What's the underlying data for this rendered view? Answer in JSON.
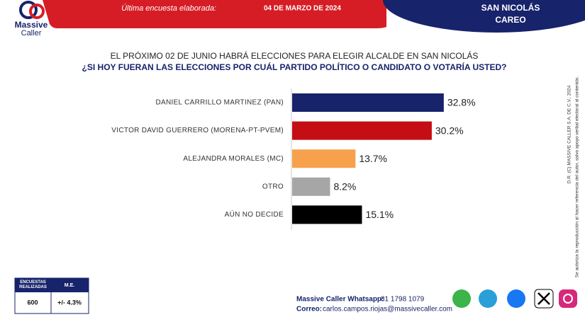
{
  "header": {
    "logo_line1": "Massive",
    "logo_line2": "Caller",
    "survey_label": "Última encuesta elaborada:",
    "survey_date": "04 DE MARZO DE 2024",
    "region": "SAN NICOLÁS",
    "region_sub": "CAREO"
  },
  "chart_data": {
    "type": "hbar",
    "title": "EL PRÓXIMO 02 DE JUNIO HABRÁ ELECCIONES PARA ELEGIR ALCALDE EN SAN NICOLÁS",
    "subtitle": "¿SI HOY FUERAN LAS ELECCIONES POR CUÁL PARTIDO POLÍTICO O CANDIDATO O VOTARÍA USTED?",
    "categories": [
      "DANIEL CARRILLO MARTINEZ (PAN)",
      "VICTOR DAVID GUERRERO (MORENA-PT-PVEM)",
      "ALEJANDRA MORALES (MC)",
      "OTRO",
      "AÚN NO DECIDE"
    ],
    "values": [
      32.8,
      30.2,
      13.7,
      8.2,
      15.1
    ],
    "value_labels": [
      "32.8%",
      "30.2%",
      "13.7%",
      "8.2%",
      "15.1%"
    ],
    "colors": [
      "#17236b",
      "#c40d14",
      "#f7a14d",
      "#a6a6a6",
      "#000000"
    ]
  },
  "side_notes": [
    "D.R. (C) MASSIVE CALLER S.A. DE C.V., 2024",
    "Se autoriza la reproducción al hacer referencia del autor, salvo apoyo verbal electoral al contenido."
  ],
  "sample_box": {
    "headers": [
      "ENCUESTAS REALIZADAS",
      "M.E."
    ],
    "row": [
      "600",
      "+/- 4.3%"
    ]
  },
  "footer": {
    "whatsapp_label": "Massive Caller Whatsapp:",
    "whatsapp": "81 1798 1079",
    "email_label": "Correo:",
    "email": "carlos.campos.riojas@massivecaller.com"
  }
}
